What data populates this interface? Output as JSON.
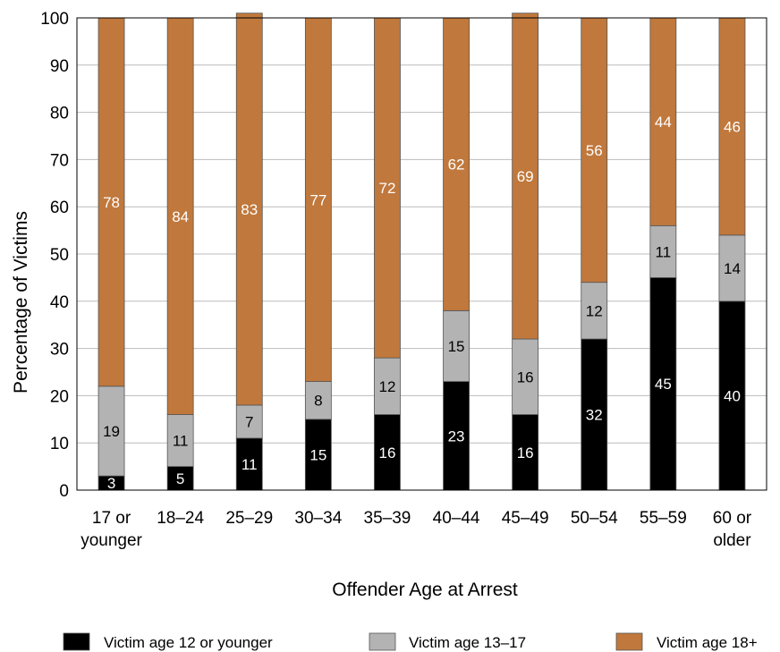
{
  "chart_data": {
    "type": "bar",
    "stacked": true,
    "xlabel": "Offender Age at Arrest",
    "ylabel": "Percentage of Victims",
    "ylim": [
      0,
      100
    ],
    "yticks": [
      0,
      10,
      20,
      30,
      40,
      50,
      60,
      70,
      80,
      90,
      100
    ],
    "grid": true,
    "legend_position": "bottom",
    "categories": [
      [
        "17 or",
        "younger"
      ],
      [
        "18–24"
      ],
      [
        "25–29"
      ],
      [
        "30–34"
      ],
      [
        "35–39"
      ],
      [
        "40–44"
      ],
      [
        "45–49"
      ],
      [
        "50–54"
      ],
      [
        "55–59"
      ],
      [
        "60 or",
        "older"
      ]
    ],
    "series": [
      {
        "name": "Victim age 12 or younger",
        "color": "#000000",
        "label_color": "#ffffff",
        "values": [
          3,
          5,
          11,
          15,
          16,
          23,
          16,
          32,
          45,
          40
        ],
        "labels": [
          "3",
          "5",
          "11",
          "15",
          "16",
          "23",
          "16",
          "32",
          "45",
          "40"
        ]
      },
      {
        "name": "Victim age 13–17",
        "color": "#b3b3b3",
        "label_color": "#000000",
        "values": [
          19,
          11,
          7,
          8,
          12,
          15,
          16,
          12,
          11,
          14
        ],
        "labels": [
          "19",
          "11",
          "7",
          "8",
          "12",
          "15",
          "16",
          "12",
          "11",
          "14"
        ]
      },
      {
        "name": "Victim age 18+",
        "color": "#c0783c",
        "label_color": "#ffffff",
        "values": [
          78,
          84,
          83,
          77,
          72,
          62,
          69,
          56,
          44,
          46
        ],
        "labels": [
          "78",
          "84",
          "83",
          "77",
          "72",
          "62",
          "69",
          "56",
          "44",
          "46"
        ]
      }
    ]
  }
}
